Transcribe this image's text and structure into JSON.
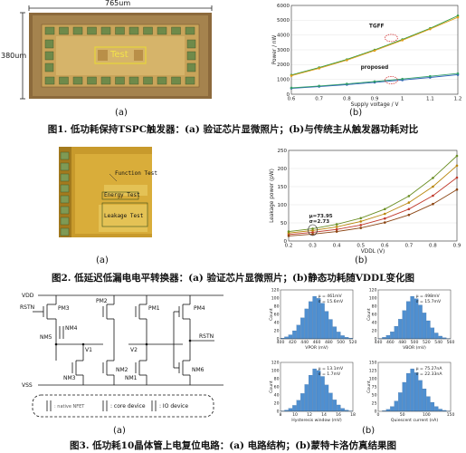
{
  "fig1": {
    "chip": {
      "width_label": "765um",
      "height_label": "380um",
      "block_label": "Test"
    },
    "panel_a": "(a)",
    "panel_b": "(b)",
    "caption": "图1. 低功耗保持TSPC触发器：(a) 验证芯片显微照片；(b)与传统主从触发器功耗对比",
    "chart_data": {
      "type": "line",
      "xlabel": "Supply voltage / V",
      "ylabel": "Power / nW",
      "xlim": [
        0.6,
        1.2
      ],
      "ylim": [
        0,
        6000
      ],
      "xticks": [
        0.6,
        0.7,
        0.8,
        0.9,
        1.0,
        1.1,
        1.2
      ],
      "yticks": [
        0,
        1000,
        2000,
        3000,
        4000,
        5000,
        6000
      ],
      "x": [
        0.6,
        0.7,
        0.8,
        0.9,
        1.0,
        1.1,
        1.2
      ],
      "series": [
        {
          "name": "TGFF",
          "values": [
            1300,
            1800,
            2350,
            3000,
            3700,
            4450,
            5300
          ]
        },
        {
          "name": "TGFF",
          "values": [
            1250,
            1750,
            2300,
            2950,
            3650,
            4400,
            5200
          ]
        },
        {
          "name": "proposed",
          "values": [
            400,
            520,
            650,
            800,
            960,
            1130,
            1320
          ]
        },
        {
          "name": "proposed",
          "values": [
            430,
            560,
            700,
            860,
            1030,
            1210,
            1400
          ]
        }
      ],
      "annotations": [
        "TGFF",
        "proposed"
      ]
    }
  },
  "fig2": {
    "chip": {
      "label_function": "Function Test",
      "label_energy": "Energy Test",
      "label_leakage": "Leakage Test"
    },
    "panel_a": "(a)",
    "panel_b": "(b)",
    "caption": "图2. 低延迟低漏电电平转换器：(a) 验证芯片显微照片；(b)静态功耗随VDDL变化图",
    "chart_data": {
      "type": "line",
      "xlabel": "VDDL (V)",
      "ylabel": "Leakage power (pW)",
      "xlim": [
        0.2,
        0.9
      ],
      "ylim": [
        0,
        250
      ],
      "xticks": [
        0.2,
        0.3,
        0.4,
        0.5,
        0.6,
        0.7,
        0.8,
        0.9
      ],
      "yticks": [
        0,
        50,
        100,
        150,
        200,
        250
      ],
      "x": [
        0.2,
        0.3,
        0.4,
        0.5,
        0.6,
        0.7,
        0.8,
        0.9
      ],
      "series": [
        {
          "values": [
            18,
            24,
            32,
            44,
            62,
            88,
            125,
            175
          ]
        },
        {
          "values": [
            22,
            29,
            39,
            54,
            75,
            106,
            150,
            208
          ]
        },
        {
          "values": [
            26,
            34,
            46,
            63,
            88,
            124,
            174,
            235
          ]
        },
        {
          "values": [
            14,
            19,
            26,
            36,
            51,
            72,
            102,
            142
          ]
        }
      ],
      "annotations": [
        "μ=73.95",
        "σ=2.73"
      ]
    }
  },
  "fig3": {
    "panel_a": "(a)",
    "panel_b": "(b)",
    "caption": "图3. 低功耗10晶体管上电复位电路：(a) 电路结构；(b)蒙特卡洛仿真结果图",
    "schematic": {
      "vdd": "VDD",
      "vss": "VSS",
      "rstn_left": "RSTN",
      "rstn_right": "RSTN",
      "pm3": "PM3",
      "nm4": "NM4",
      "nm5": "NM5",
      "pm2": "PM2",
      "pm1": "PM1",
      "pm4": "PM4",
      "v1": "V1",
      "v2": "V2",
      "nm3": "NM3",
      "nm2": "NM2",
      "nm1": "NM1",
      "nm6": "NM6",
      "legend_native": ": native NFET",
      "legend_core": ": core device",
      "legend_io": ": IO device"
    },
    "histograms": [
      {
        "annot_mu": "μ = 461mV",
        "annot_sigma": "σ = 15.6mV",
        "xlabel": "VPOR (mV)",
        "ylabel": "Count",
        "xticks": [
          "400",
          "420",
          "440",
          "460",
          "480",
          "500",
          "520"
        ],
        "yticks": [
          "0",
          "20",
          "40",
          "60",
          "80",
          "100",
          "120"
        ],
        "counts": [
          2,
          5,
          10,
          20,
          34,
          52,
          74,
          92,
          105,
          100,
          88,
          68,
          48,
          30,
          17,
          8,
          4,
          2
        ]
      },
      {
        "annot_mu": "μ = 498mV",
        "annot_sigma": "σ = 15.7mV",
        "xlabel": "VBOR (mV)",
        "ylabel": "Count",
        "xticks": [
          "440",
          "460",
          "480",
          "500",
          "520",
          "540",
          "560"
        ],
        "yticks": [
          "0",
          "20",
          "40",
          "60",
          "80",
          "100",
          "120"
        ],
        "counts": [
          1,
          4,
          9,
          18,
          32,
          50,
          72,
          95,
          108,
          102,
          86,
          66,
          46,
          28,
          15,
          7,
          3,
          1
        ]
      },
      {
        "annot_mu": "μ = 13.1mV",
        "annot_sigma": "σ = 1.7mV",
        "xlabel": "Hysteresis window (mV)",
        "ylabel": "Count",
        "xticks": [
          "8",
          "10",
          "12",
          "14",
          "16",
          "18"
        ],
        "yticks": [
          "0",
          "20",
          "40",
          "60",
          "80",
          "100",
          "120"
        ],
        "counts": [
          1,
          3,
          7,
          14,
          26,
          42,
          63,
          85,
          100,
          96,
          82,
          62,
          43,
          27,
          15,
          7,
          3,
          1
        ]
      },
      {
        "annot_mu": "μ = 75.27nA",
        "annot_sigma": "σ = 22.33nA",
        "xlabel": "Quiescent current (nA)",
        "ylabel": "Count",
        "xticks": [
          "0",
          "50",
          "100",
          "150"
        ],
        "yticks": [
          "0",
          "25",
          "50",
          "75",
          "100",
          "125",
          "150"
        ],
        "counts": [
          0,
          2,
          6,
          15,
          32,
          58,
          90,
          118,
          132,
          120,
          96,
          70,
          46,
          28,
          15,
          7,
          3,
          1
        ]
      }
    ]
  }
}
